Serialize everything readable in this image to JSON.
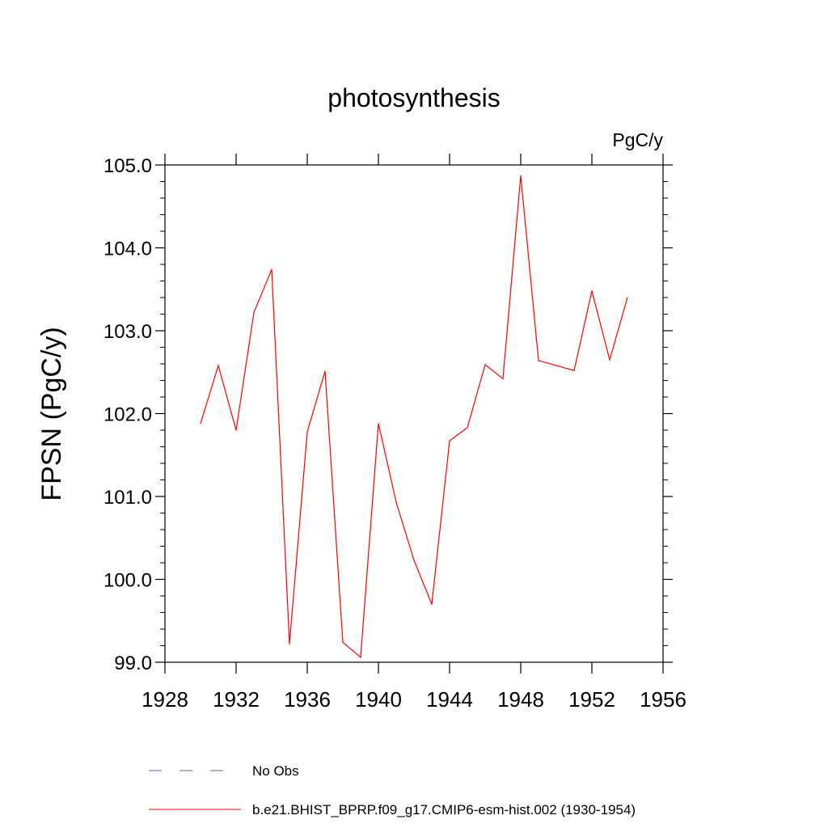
{
  "chart_data": {
    "type": "line",
    "title": "photosynthesis",
    "units_label": "PgC/y",
    "xlabel": "",
    "ylabel": "FPSN  (PgC/y)",
    "xlim": [
      1928,
      1956
    ],
    "ylim": [
      99.0,
      105.0
    ],
    "x_ticks": [
      "1928",
      "1932",
      "1936",
      "1940",
      "1944",
      "1948",
      "1952",
      "1956"
    ],
    "y_ticks": [
      "99.0",
      "100.0",
      "101.0",
      "102.0",
      "103.0",
      "104.0",
      "105.0"
    ],
    "grid": false,
    "legend_position": "bottom",
    "colors": {
      "model": "#ff0000",
      "obs": "#5b57c9"
    },
    "series": [
      {
        "name": "b.e21.BHIST_BPRP.f09_g17.CMIP6-esm-hist.002 (1930-1954)",
        "style": "solid",
        "x": [
          1930,
          1931,
          1932,
          1933,
          1934,
          1935,
          1936,
          1937,
          1938,
          1939,
          1940,
          1941,
          1942,
          1943,
          1944,
          1945,
          1946,
          1947,
          1948,
          1949,
          1950,
          1951,
          1952,
          1953,
          1954
        ],
        "values": [
          101.88,
          102.58,
          101.8,
          103.22,
          103.74,
          99.22,
          101.78,
          102.51,
          99.24,
          99.06,
          101.88,
          100.93,
          100.23,
          99.7,
          101.67,
          101.83,
          102.59,
          102.42,
          104.87,
          102.64,
          102.58,
          102.52,
          103.48,
          102.65,
          103.4
        ]
      }
    ],
    "legend": [
      {
        "label": "No Obs",
        "style": "dashed",
        "color": "#5b57c9"
      },
      {
        "label": "b.e21.BHIST_BPRP.f09_g17.CMIP6-esm-hist.002 (1930-1954)",
        "style": "solid",
        "color": "#ff0000"
      }
    ]
  }
}
